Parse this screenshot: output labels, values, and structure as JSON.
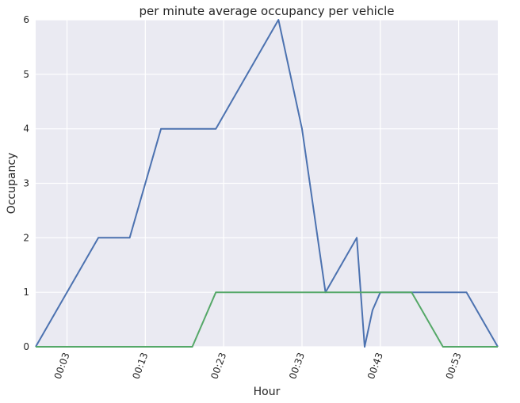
{
  "chart_data": {
    "type": "line",
    "title": "per minute average occupancy per vehicle",
    "xlabel": "Hour",
    "ylabel": "Occupancy",
    "x_ticks": [
      {
        "value": 3,
        "label": "00:03"
      },
      {
        "value": 13,
        "label": "00:13"
      },
      {
        "value": 23,
        "label": "00:23"
      },
      {
        "value": 33,
        "label": "00:33"
      },
      {
        "value": 43,
        "label": "00:43"
      },
      {
        "value": 53,
        "label": "00:53"
      }
    ],
    "y_ticks": [
      0,
      1,
      2,
      3,
      4,
      5,
      6
    ],
    "xlim": [
      -1,
      58
    ],
    "ylim": [
      0,
      6
    ],
    "grid": true,
    "colors": {
      "background": "#eaeaf2",
      "grid": "#ffffff",
      "series1": "#4c72b0",
      "series2": "#55a868"
    },
    "series": [
      {
        "x": [
          -1,
          3,
          7,
          11,
          15,
          22,
          30,
          33,
          36,
          40,
          41,
          42,
          43,
          47,
          50,
          54,
          58
        ],
        "values": [
          0,
          1,
          2,
          2,
          4,
          4,
          6,
          4,
          1,
          2,
          0,
          0.67,
          1,
          1,
          1,
          1,
          0
        ]
      },
      {
        "x": [
          -1,
          19,
          22,
          47,
          51,
          58
        ],
        "values": [
          0,
          0,
          1,
          1,
          0,
          0
        ]
      }
    ]
  }
}
